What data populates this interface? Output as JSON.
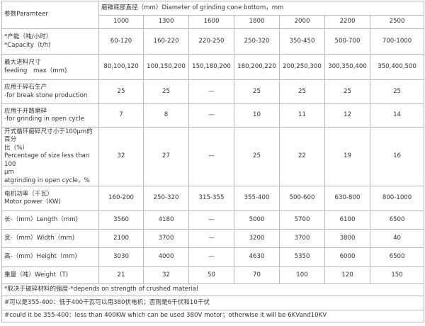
{
  "header": {
    "param_label": "参数Paramteer",
    "diameter_label": "磨锥底部直径（mm）Diameter of grinding cone bottom，mm",
    "sizes": [
      "1000",
      "1300",
      "1600",
      "1800",
      "2000",
      "2200",
      "2500"
    ]
  },
  "rows": [
    {
      "label": [
        "*产能（吨/小时）",
        "*Capacity（t/h)"
      ],
      "values": [
        "60-120",
        "160-220",
        "220-250",
        "250-320",
        "350-450",
        "500-700",
        "700-1000"
      ]
    },
    {
      "label": [
        "最大进料尺寸",
        "feeding　max（mm)"
      ],
      "values": [
        "80,100,120",
        "100,150,200",
        "150,180,200",
        "180,200,220",
        "200,250,300",
        "300,350,400",
        "350,400,500"
      ]
    },
    {
      "label": [
        "应用于碎石生产",
        "-for break stone production"
      ],
      "values": [
        "25",
        "25",
        "—",
        "25",
        "25",
        "25",
        "25"
      ]
    },
    {
      "label": [
        "应用于开路磨碎",
        "-for grinding in open cycle"
      ],
      "values": [
        "7",
        "8",
        "—",
        "10",
        "11",
        "12",
        "14"
      ]
    },
    {
      "label": [
        "开式循环磨碎尺寸小于100μm的百分",
        "比（%）",
        "Percentage of size less than 100",
        "μm",
        "atgrinding in open cycle，%"
      ],
      "values": [
        "32",
        "27",
        "—",
        "25",
        "22",
        "19",
        "16"
      ]
    },
    {
      "label": [
        "电机功率（千瓦）",
        "Motor power（KW)"
      ],
      "values": [
        "160-200",
        "250-320",
        "315-355",
        "355-400",
        "500-600",
        "630-800",
        "800-1000"
      ]
    },
    {
      "label": [
        "长-（mm）Length（mm)"
      ],
      "values": [
        "3560",
        "4180",
        "—",
        "5000",
        "5700",
        "6100",
        "6500"
      ]
    },
    {
      "label": [
        "宽-（mm）Width（mm)"
      ],
      "values": [
        "2100",
        "3700",
        "—",
        "3200",
        "3700",
        "3800",
        "40"
      ]
    },
    {
      "label": [
        "高-（mm）Height（mm)"
      ],
      "values": [
        "3030",
        "4000",
        "—",
        "4630",
        "5350",
        "6000",
        "6500"
      ]
    },
    {
      "label": [
        "重量（吨）Weight（T)"
      ],
      "values": [
        "21",
        "32",
        "50",
        "70",
        "100",
        "120",
        "150"
      ]
    }
  ],
  "footnotes": [
    "*取决于破碎材料的强度-*depends on strength of crushed material",
    "#可以是355-400：低于400千瓦可以用380伏电机；否则是6千伏和10千伏",
    "#could it be 355-400：less than 400KW which can be used 380V motor；otherwise it will be 6KVand10KV"
  ]
}
